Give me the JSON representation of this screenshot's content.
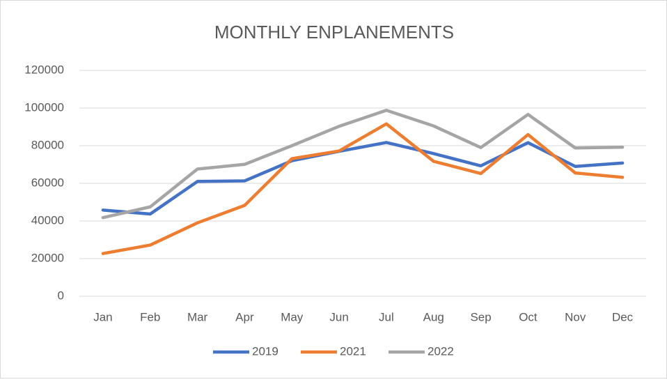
{
  "chart_data": {
    "type": "line",
    "title": "MONTHLY ENPLANEMENTS",
    "categories": [
      "Jan",
      "Feb",
      "Mar",
      "Apr",
      "May",
      "Jun",
      "Jul",
      "Aug",
      "Sep",
      "Oct",
      "Nov",
      "Dec"
    ],
    "series": [
      {
        "name": "2019",
        "color": "#4472c4",
        "values": [
          45800,
          43700,
          61000,
          61300,
          72000,
          77000,
          81700,
          75800,
          69300,
          81600,
          69000,
          70800
        ]
      },
      {
        "name": "2021",
        "color": "#ed7d31",
        "values": [
          22700,
          27200,
          39000,
          48300,
          73100,
          77200,
          91600,
          71700,
          65200,
          85900,
          65500,
          63200
        ]
      },
      {
        "name": "2022",
        "color": "#a5a5a5",
        "values": [
          41800,
          47500,
          67600,
          70100,
          80000,
          90300,
          98800,
          90500,
          79000,
          96600,
          78800,
          79200
        ]
      }
    ],
    "ylim": [
      0,
      120000
    ],
    "yticks": [
      0,
      20000,
      40000,
      60000,
      80000,
      100000,
      120000
    ],
    "grid": true,
    "legend": "bottom"
  }
}
